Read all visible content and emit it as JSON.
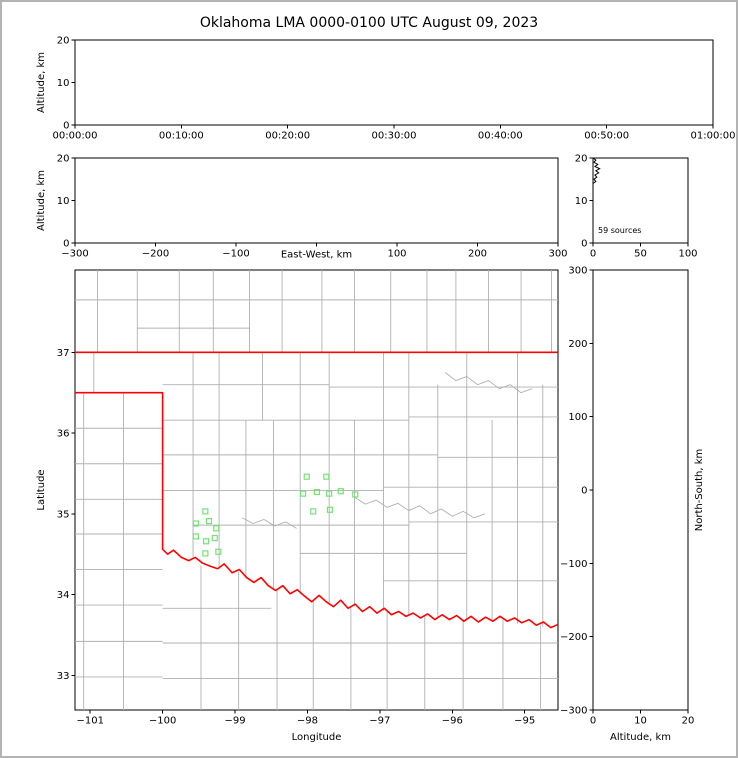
{
  "title": "Oklahoma LMA 0000-0100 UTC August 09, 2023",
  "colors": {
    "state_border": "#ff0000",
    "county_border": "#b0b0b0",
    "station": "#74e274",
    "axes": "#000000",
    "background": "#ffffff",
    "frame": "#b3b3b3"
  },
  "chart_data": [
    {
      "id": "time_height",
      "type": "scatter",
      "xlabel": "",
      "ylabel": "Altitude, km",
      "xlim": [
        0,
        3600
      ],
      "ylim": [
        0,
        20
      ],
      "xticks": [
        [
          0,
          "00:00:00"
        ],
        [
          600,
          "00:10:00"
        ],
        [
          1200,
          "00:20:00"
        ],
        [
          1800,
          "00:30:00"
        ],
        [
          2400,
          "00:40:00"
        ],
        [
          3000,
          "00:50:00"
        ],
        [
          3600,
          "01:00:00"
        ]
      ],
      "yticks": [
        [
          0,
          "0"
        ],
        [
          10,
          "10"
        ],
        [
          20,
          "20"
        ]
      ],
      "points": []
    },
    {
      "id": "ew_height",
      "type": "scatter",
      "xlabel": "East-West, km",
      "ylabel": "Altitude, km",
      "xlim": [
        -300,
        300
      ],
      "ylim": [
        0,
        20
      ],
      "xticks": [
        [
          -300,
          "−300"
        ],
        [
          -200,
          "−200"
        ],
        [
          -100,
          "−100"
        ],
        [
          0,
          ""
        ],
        [
          100,
          "100"
        ],
        [
          200,
          "200"
        ],
        [
          300,
          "300"
        ]
      ],
      "yticks": [
        [
          0,
          "0"
        ],
        [
          10,
          "10"
        ],
        [
          20,
          "20"
        ]
      ],
      "points": []
    },
    {
      "id": "source_histogram",
      "type": "line",
      "annotation": "59 sources",
      "xlim": [
        0,
        100
      ],
      "ylim": [
        0,
        20
      ],
      "xticks": [
        [
          0,
          "0"
        ],
        [
          50,
          "50"
        ],
        [
          100,
          "100"
        ]
      ],
      "yticks": [
        [
          0,
          "0"
        ],
        [
          10,
          "10"
        ],
        [
          20,
          "20"
        ]
      ],
      "curve": [
        [
          0,
          20
        ],
        [
          3,
          19.5
        ],
        [
          1,
          19
        ],
        [
          5,
          18.5
        ],
        [
          2,
          18
        ],
        [
          7,
          17.5
        ],
        [
          3,
          17
        ],
        [
          6,
          16.5
        ],
        [
          2,
          16
        ],
        [
          4,
          15.5
        ],
        [
          1,
          15
        ],
        [
          3,
          14.5
        ],
        [
          0,
          14
        ]
      ]
    },
    {
      "id": "plan_view",
      "type": "map",
      "xlabel": "Longitude",
      "ylabel": "Latitude",
      "xlim": [
        -101.21,
        -94.54
      ],
      "ylim": [
        32.57,
        38.02
      ],
      "xticks": [
        [
          -101,
          "−101"
        ],
        [
          -100,
          "−100"
        ],
        [
          -99,
          "−99"
        ],
        [
          -98,
          "−98"
        ],
        [
          -97,
          "−97"
        ],
        [
          -96,
          "−96"
        ],
        [
          -95,
          "−95"
        ]
      ],
      "yticks": [
        [
          33,
          "33"
        ],
        [
          34,
          "34"
        ],
        [
          35,
          "35"
        ],
        [
          36,
          "36"
        ],
        [
          37,
          "37"
        ]
      ],
      "state_border": [
        [
          [
            -101.21,
            37
          ],
          [
            -94.54,
            37
          ]
        ],
        [
          [
            -101.21,
            36.5
          ],
          [
            -100,
            36.5
          ],
          [
            -100,
            34.56
          ],
          [
            -99.93,
            34.5
          ],
          [
            -99.85,
            34.55
          ],
          [
            -99.74,
            34.46
          ],
          [
            -99.64,
            34.42
          ],
          [
            -99.55,
            34.46
          ],
          [
            -99.45,
            34.39
          ],
          [
            -99.34,
            34.35
          ],
          [
            -99.24,
            34.32
          ],
          [
            -99.15,
            34.38
          ],
          [
            -99.04,
            34.27
          ],
          [
            -98.94,
            34.31
          ],
          [
            -98.84,
            34.21
          ],
          [
            -98.74,
            34.15
          ],
          [
            -98.64,
            34.21
          ],
          [
            -98.54,
            34.11
          ],
          [
            -98.44,
            34.05
          ],
          [
            -98.34,
            34.11
          ],
          [
            -98.24,
            34.01
          ],
          [
            -98.14,
            34.06
          ],
          [
            -98.04,
            33.98
          ],
          [
            -97.94,
            33.91
          ],
          [
            -97.84,
            33.99
          ],
          [
            -97.74,
            33.91
          ],
          [
            -97.64,
            33.85
          ],
          [
            -97.54,
            33.93
          ],
          [
            -97.44,
            33.83
          ],
          [
            -97.34,
            33.88
          ],
          [
            -97.24,
            33.79
          ],
          [
            -97.14,
            33.85
          ],
          [
            -97.04,
            33.77
          ],
          [
            -96.94,
            33.83
          ],
          [
            -96.84,
            33.75
          ],
          [
            -96.74,
            33.79
          ],
          [
            -96.64,
            33.73
          ],
          [
            -96.54,
            33.77
          ],
          [
            -96.44,
            33.71
          ],
          [
            -96.34,
            33.76
          ],
          [
            -96.24,
            33.69
          ],
          [
            -96.14,
            33.75
          ],
          [
            -96.04,
            33.69
          ],
          [
            -95.94,
            33.74
          ],
          [
            -95.84,
            33.67
          ],
          [
            -95.74,
            33.73
          ],
          [
            -95.64,
            33.66
          ],
          [
            -95.54,
            33.72
          ],
          [
            -95.44,
            33.67
          ],
          [
            -95.34,
            33.73
          ],
          [
            -95.24,
            33.67
          ],
          [
            -95.14,
            33.71
          ],
          [
            -95.04,
            33.65
          ],
          [
            -94.94,
            33.69
          ],
          [
            -94.84,
            33.62
          ],
          [
            -94.74,
            33.66
          ],
          [
            -94.64,
            33.59
          ],
          [
            -94.54,
            33.63
          ]
        ]
      ],
      "county_lines": {
        "vertical": [
          [
            -100.9,
            37,
            38.03
          ],
          [
            -100.35,
            37,
            38.03
          ],
          [
            -99.77,
            37,
            38.03
          ],
          [
            -99.3,
            37,
            38.03
          ],
          [
            -98.8,
            37,
            38.03
          ],
          [
            -98.35,
            37,
            38.03
          ],
          [
            -97.8,
            37,
            38.03
          ],
          [
            -97.35,
            37,
            38.03
          ],
          [
            -96.85,
            37,
            38.03
          ],
          [
            -96.35,
            37,
            38.03
          ],
          [
            -95.95,
            37,
            38.03
          ],
          [
            -95.5,
            37,
            38.03
          ],
          [
            -95.05,
            37,
            38.03
          ],
          [
            -94.63,
            37,
            38.03
          ],
          [
            -100.95,
            36.5,
            37
          ],
          [
            -100.54,
            32.56,
            36.5
          ],
          [
            -101.09,
            32.56,
            36.5
          ],
          [
            -99.58,
            34.44,
            37
          ],
          [
            -99.22,
            34.33,
            37
          ],
          [
            -98.85,
            34.2,
            36.16
          ],
          [
            -98.62,
            36.16,
            37
          ],
          [
            -98.47,
            34.07,
            36.16
          ],
          [
            -98.1,
            34.0,
            37
          ],
          [
            -97.7,
            33.9,
            37
          ],
          [
            -97.35,
            33.86,
            36.16
          ],
          [
            -96.95,
            33.8,
            37
          ],
          [
            -96.6,
            33.74,
            37
          ],
          [
            -96.2,
            33.71,
            36.6
          ],
          [
            -95.8,
            33.68,
            37
          ],
          [
            -95.45,
            33.68,
            36.16
          ],
          [
            -95.1,
            33.64,
            37
          ],
          [
            -94.75,
            33.6,
            36.6
          ],
          [
            -99.47,
            32.56,
            34.36
          ],
          [
            -98.95,
            32.56,
            34.28
          ],
          [
            -98.42,
            32.56,
            34.07
          ],
          [
            -97.92,
            32.56,
            33.93
          ],
          [
            -97.4,
            32.56,
            33.85
          ],
          [
            -96.9,
            32.56,
            33.79
          ],
          [
            -96.38,
            32.56,
            33.73
          ],
          [
            -95.85,
            32.56,
            33.69
          ],
          [
            -95.3,
            32.56,
            33.69
          ],
          [
            -94.78,
            32.56,
            33.62
          ]
        ],
        "horizontal": [
          [
            37.65,
            -101.21,
            -94.54
          ],
          [
            37.3,
            -100.35,
            -98.8
          ],
          [
            36.06,
            -101.21,
            -100
          ],
          [
            35.62,
            -101.21,
            -100
          ],
          [
            35.18,
            -101.21,
            -100
          ],
          [
            34.75,
            -101.21,
            -100
          ],
          [
            34.31,
            -101.21,
            -100
          ],
          [
            33.87,
            -101.21,
            -100
          ],
          [
            33.42,
            -101.21,
            -100
          ],
          [
            32.98,
            -101.21,
            -100
          ],
          [
            36.6,
            -100,
            -97.7
          ],
          [
            36.57,
            -97.7,
            -94.54
          ],
          [
            36.16,
            -100,
            -96.6
          ],
          [
            36.2,
            -96.6,
            -94.54
          ],
          [
            35.73,
            -100,
            -96.2
          ],
          [
            35.7,
            -96.2,
            -94.54
          ],
          [
            35.29,
            -100,
            -96.95
          ],
          [
            35.33,
            -96.95,
            -94.54
          ],
          [
            34.86,
            -99.58,
            -96.6
          ],
          [
            34.9,
            -96.6,
            -94.54
          ],
          [
            34.51,
            -98.1,
            -95.8
          ],
          [
            34.17,
            -96.95,
            -94.54
          ],
          [
            33.83,
            -100,
            -98.5
          ],
          [
            33.4,
            -100,
            -94.54
          ],
          [
            32.96,
            -100,
            -94.54
          ]
        ],
        "meanders": [
          [
            [
              -97.34,
              35.2
            ],
            [
              -97.2,
              35.12
            ],
            [
              -97.05,
              35.17
            ],
            [
              -96.9,
              35.08
            ],
            [
              -96.75,
              35.13
            ],
            [
              -96.6,
              35.04
            ],
            [
              -96.45,
              35.1
            ],
            [
              -96.3,
              35.0
            ],
            [
              -96.15,
              35.06
            ],
            [
              -96.0,
              34.97
            ],
            [
              -95.85,
              35.03
            ],
            [
              -95.7,
              34.95
            ],
            [
              -95.55,
              35.0
            ]
          ],
          [
            [
              -96.1,
              36.75
            ],
            [
              -95.95,
              36.65
            ],
            [
              -95.8,
              36.7
            ],
            [
              -95.65,
              36.6
            ],
            [
              -95.5,
              36.65
            ],
            [
              -95.35,
              36.55
            ],
            [
              -95.2,
              36.6
            ],
            [
              -95.05,
              36.5
            ],
            [
              -94.9,
              36.55
            ]
          ],
          [
            [
              -98.9,
              34.95
            ],
            [
              -98.75,
              34.88
            ],
            [
              -98.6,
              34.93
            ],
            [
              -98.45,
              34.85
            ],
            [
              -98.3,
              34.9
            ],
            [
              -98.15,
              34.82
            ]
          ]
        ]
      },
      "stations": [
        [
          -98.01,
          35.46
        ],
        [
          -97.74,
          35.46
        ],
        [
          -98.06,
          35.25
        ],
        [
          -97.87,
          35.27
        ],
        [
          -97.7,
          35.25
        ],
        [
          -97.54,
          35.28
        ],
        [
          -97.34,
          35.24
        ],
        [
          -97.92,
          35.03
        ],
        [
          -97.69,
          35.05
        ],
        [
          -99.41,
          35.03
        ],
        [
          -99.54,
          34.88
        ],
        [
          -99.36,
          34.91
        ],
        [
          -99.26,
          34.82
        ],
        [
          -99.54,
          34.72
        ],
        [
          -99.4,
          34.66
        ],
        [
          -99.28,
          34.7
        ],
        [
          -99.41,
          34.51
        ],
        [
          -99.23,
          34.53
        ]
      ]
    },
    {
      "id": "ns_height",
      "type": "scatter",
      "xlabel": "Altitude, km",
      "ylabel": "North-South, km",
      "ylabel_side": "right",
      "xlim": [
        0,
        20
      ],
      "ylim": [
        -300,
        300
      ],
      "xticks": [
        [
          0,
          "0"
        ],
        [
          10,
          "10"
        ],
        [
          20,
          "20"
        ]
      ],
      "yticks": [
        [
          -300,
          "−300"
        ],
        [
          -200,
          "−200"
        ],
        [
          -100,
          "−100"
        ],
        [
          0,
          "0"
        ],
        [
          100,
          "100"
        ],
        [
          200,
          "200"
        ],
        [
          300,
          "300"
        ]
      ],
      "points": []
    }
  ]
}
